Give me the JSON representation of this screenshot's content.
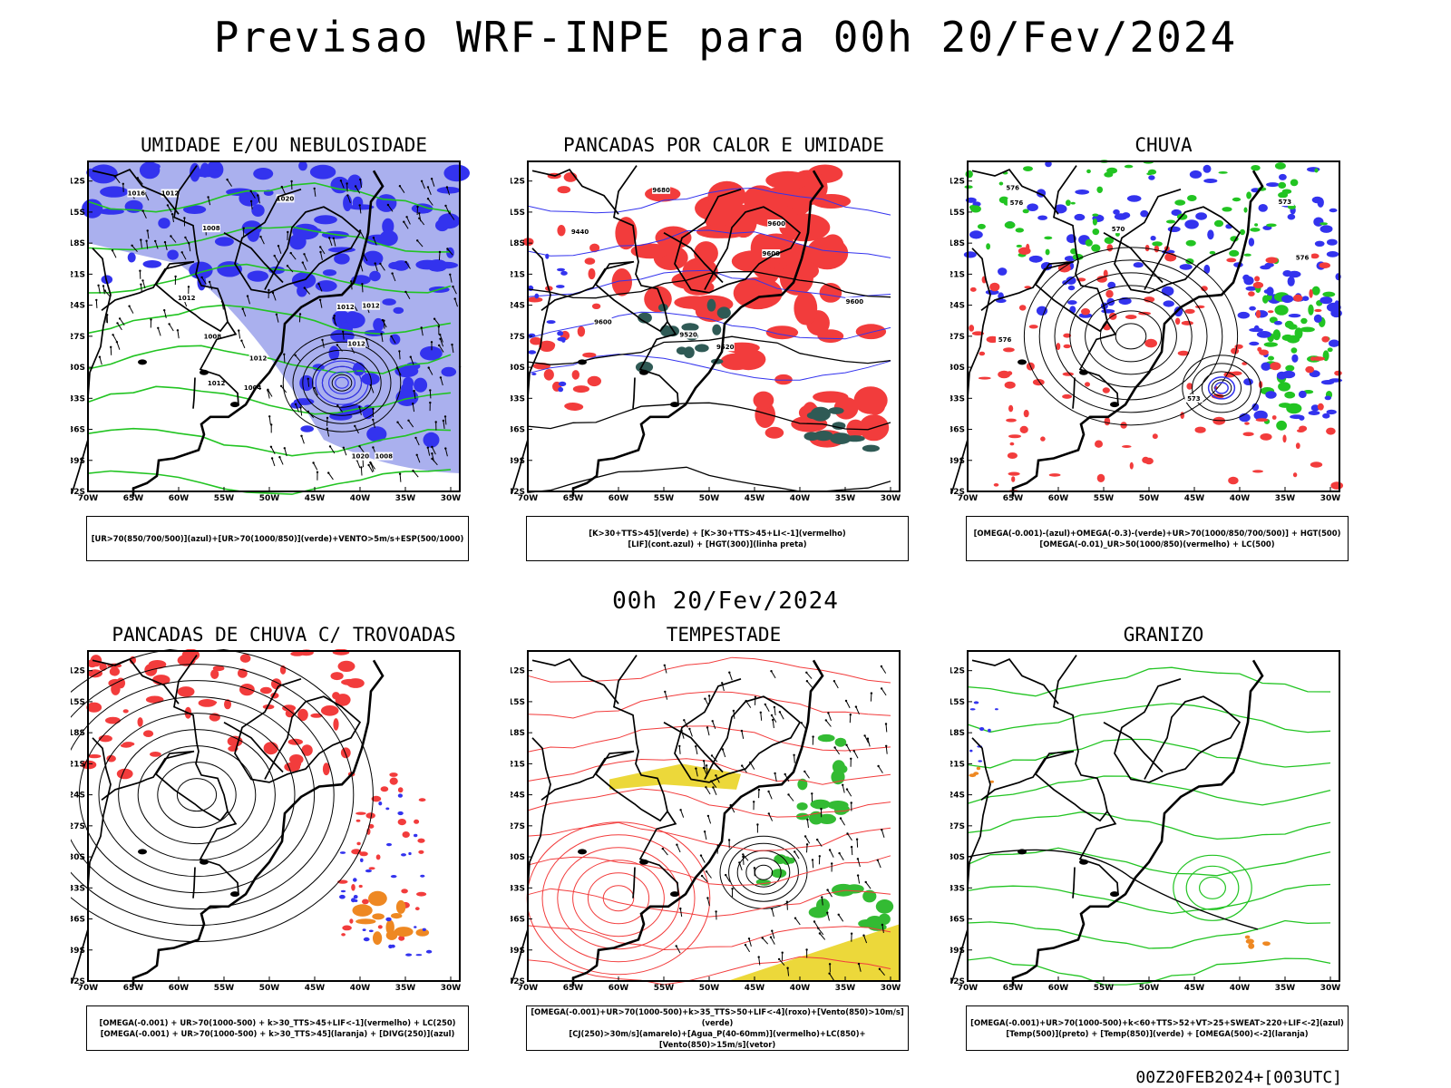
{
  "title": "Previsao WRF-INPE  para 00h 20/Fev/2024",
  "middle_title": "00h 20/Fev/2024",
  "timestamp": "00Z20FEB2024+[003UTC]",
  "axes": {
    "lat_labels": [
      "12S",
      "15S",
      "18S",
      "21S",
      "24S",
      "27S",
      "30S",
      "33S",
      "36S",
      "39S",
      "42S"
    ],
    "lon_labels": [
      "70W",
      "65W",
      "60W",
      "55W",
      "50W",
      "45W",
      "40W",
      "35W",
      "30W"
    ]
  },
  "colors": {
    "red": "#f23c3c",
    "green": "#22c422",
    "blue": "#3333ee",
    "lightblue": "#aab0ee",
    "yellow": "#ecd83a",
    "orange": "#ee8822",
    "darkteal": "#2f5a55"
  },
  "panels": [
    {
      "id": "umidade",
      "title": "UMIDADE E/OU NEBULOSIDADE",
      "legend": [
        "[UR>70(850/700/500)](azul)+[UR>70(1000/850)](verde)+VENTO>5m/s+ESP(500/1000)"
      ],
      "contour_labels": [
        "1012",
        "1012",
        "1012",
        "1012",
        "1008",
        "1008",
        "1004",
        "1008",
        "1012",
        "1012",
        "1012",
        "1020",
        "1016",
        "1020"
      ]
    },
    {
      "id": "pancadas_calor",
      "title": "PANCADAS POR CALOR E UMIDADE",
      "legend": [
        "[K>30+TTS>45](verde) + [K>30+TTS>45+LI<-1](vermelho)",
        "[LIF](cont.azul) + [HGT(300)](linha preta)"
      ],
      "contour_labels": [
        "9680",
        "9600",
        "9600",
        "9520",
        "9520",
        "9600",
        "9440",
        "9600"
      ]
    },
    {
      "id": "chuva",
      "title": "CHUVA",
      "legend": [
        "[OMEGA(-0.001)-(azul)+OMEGA(-0.3)-(verde)+UR>70(1000/850/700/500)] + HGT(500)",
        "[OMEGA(-0.01)_UR>50(1000/850)(vermelho) + LC(500)"
      ],
      "contour_labels": [
        "576",
        "576",
        "576",
        "573",
        "576",
        "573",
        "570"
      ]
    },
    {
      "id": "trovoadas",
      "title": "PANCADAS DE CHUVA C/ TROVOADAS",
      "legend": [
        "[OMEGA(-0.001) + UR>70(1000-500) + k>30_TTS>45+LIF<-1](vermelho) + LC(250)",
        "[OMEGA(-0.001) + UR>70(1000-500) + k>30_TTS>45](laranja) + [DIVG(250)](azul)"
      ],
      "contour_labels": []
    },
    {
      "id": "tempestade",
      "title": "TEMPESTADE",
      "legend": [
        "[OMEGA(-0.001)+UR>70(1000-500)+k>35_TTS>50+LIF<-4](roxo)+[Vento(850)>10m/s](verde)",
        "[CJ(250)>30m/s](amarelo)+[Agua_P(40-60mm)](vermelho)+LC(850)+[Vento(850)>15m/s](vetor)"
      ],
      "contour_labels": []
    },
    {
      "id": "granizo",
      "title": "GRANIZO",
      "legend": [
        "[OMEGA(-0.001)+UR>70(1000-500)+k<60+TTS>52+VT>25+SWEAT>220+LIF<-2](azul)",
        "[Temp(500)](preto) + [Temp(850)](verde) + [OMEGA(500)<-2](laranja)"
      ],
      "contour_labels": []
    }
  ]
}
